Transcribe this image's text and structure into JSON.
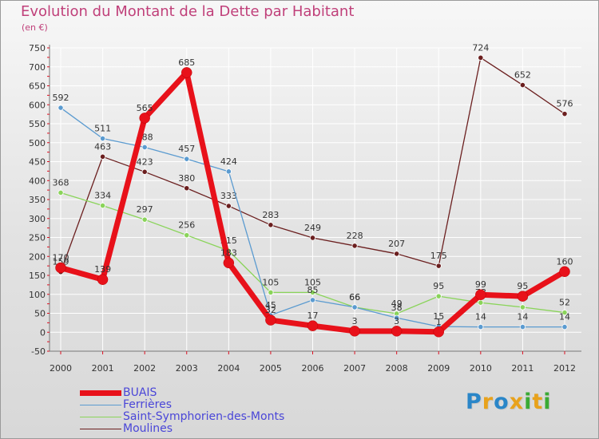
{
  "title": "Evolution du Montant de la Dette par Habitant",
  "subtitle": "(en €)",
  "brand": {
    "text": "Proxiti",
    "colors": [
      "#2a86c8",
      "#e8a21c",
      "#2a86c8",
      "#e8a21c",
      "#3aaa35",
      "#e8a21c",
      "#3aaa35"
    ]
  },
  "chart_data": {
    "type": "line",
    "x": [
      "2000",
      "2001",
      "2002",
      "2003",
      "2004",
      "2005",
      "2006",
      "2007",
      "2008",
      "2009",
      "2010",
      "2011",
      "2012"
    ],
    "ylim": [
      -50,
      750
    ],
    "yticks": [
      -50,
      0,
      50,
      100,
      150,
      200,
      250,
      300,
      350,
      400,
      450,
      500,
      550,
      600,
      650,
      700,
      750
    ],
    "grid": true,
    "legend_position": "bottom-left",
    "series": [
      {
        "name": "Moulines",
        "color": "#6b1f1f",
        "values": [
          159,
          463,
          423,
          380,
          333,
          283,
          249,
          228,
          207,
          175,
          724,
          652,
          576
        ],
        "labels": [
          "159",
          "463",
          "423",
          "380",
          "333",
          "283",
          "249",
          "228",
          "207",
          "175",
          "724",
          "652",
          "576"
        ]
      },
      {
        "name": "Saint-Symphorien-des-Monts",
        "color": "#8ad45a",
        "values": [
          368,
          334,
          297,
          256,
          215,
          105,
          105,
          66,
          49,
          95,
          78,
          66,
          52
        ],
        "labels": [
          "368",
          "334",
          "297",
          "256",
          "215",
          "105",
          "105",
          "66",
          "49",
          "95",
          "78",
          "66",
          "52"
        ]
      },
      {
        "name": "Ferrières",
        "color": "#5b9bd0",
        "values": [
          592,
          511,
          488,
          457,
          424,
          45,
          85,
          66,
          38,
          15,
          14,
          14,
          14
        ],
        "labels": [
          "592",
          "511",
          "488",
          "457",
          "424",
          "45",
          "85",
          "66",
          "38",
          "15",
          "14",
          "14",
          "14"
        ]
      },
      {
        "name": "BUAIS",
        "color": "#e8111a",
        "values": [
          170,
          139,
          565,
          685,
          183,
          32,
          17,
          3,
          3,
          1,
          99,
          95,
          160
        ],
        "labels": [
          "170",
          "139",
          "565",
          "685",
          "183",
          "32",
          "17",
          "3",
          "3",
          "1",
          "99",
          "95",
          "160"
        ]
      }
    ],
    "legend": [
      {
        "name": "BUAIS",
        "color": "#e8111a",
        "width": 7
      },
      {
        "name": "Ferrières",
        "color": "#5b9bd0",
        "width": 1
      },
      {
        "name": "Saint-Symphorien-des-Monts",
        "color": "#8ad45a",
        "width": 1
      },
      {
        "name": "Moulines",
        "color": "#6b1f1f",
        "width": 1
      }
    ]
  }
}
